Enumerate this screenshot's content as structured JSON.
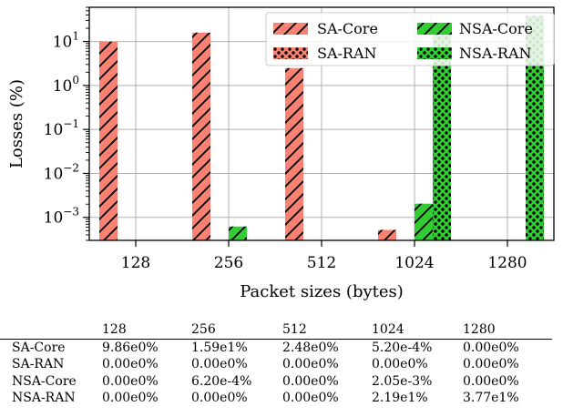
{
  "chart_data": {
    "type": "bar",
    "xlabel": "Packet sizes (bytes)",
    "ylabel": "Losses (%)",
    "yscale": "log",
    "ylim": [
      0.0003,
      60
    ],
    "yticks": [
      {
        "value": 0.001,
        "base": "10",
        "exp": "−3"
      },
      {
        "value": 0.01,
        "base": "10",
        "exp": "−2"
      },
      {
        "value": 0.1,
        "base": "10",
        "exp": "−1"
      },
      {
        "value": 1,
        "base": "10",
        "exp": "0"
      },
      {
        "value": 10,
        "base": "10",
        "exp": "1"
      }
    ],
    "grid": true,
    "legend_position": "top-right",
    "categories": [
      "128",
      "256",
      "512",
      "1024",
      "1280"
    ],
    "series": [
      {
        "name": "SA-Core",
        "color": "#fa8072",
        "hatch": "slash",
        "values": [
          9.86,
          15.9,
          2.48,
          0.00052,
          0
        ]
      },
      {
        "name": "SA-RAN",
        "color": "#fa8072",
        "hatch": "dots",
        "values": [
          0,
          0,
          0,
          0,
          0
        ]
      },
      {
        "name": "NSA-Core",
        "color": "#32cd32",
        "hatch": "slash",
        "values": [
          0,
          0.00062,
          0,
          0.00205,
          0
        ]
      },
      {
        "name": "NSA-RAN",
        "color": "#32cd32",
        "hatch": "dots",
        "values": [
          0,
          0,
          0,
          21.9,
          37.7
        ]
      }
    ]
  },
  "table": {
    "columns": [
      "",
      "128",
      "256",
      "512",
      "1024",
      "1280"
    ],
    "rows": [
      {
        "label": "SA-Core",
        "cells": [
          "9.86e0%",
          "1.59e1%",
          "2.48e0%",
          "5.20e-4%",
          "0.00e0%"
        ]
      },
      {
        "label": "SA-RAN",
        "cells": [
          "0.00e0%",
          "0.00e0%",
          "0.00e0%",
          "0.00e0%",
          "0.00e0%"
        ]
      },
      {
        "label": "NSA-Core",
        "cells": [
          "0.00e0%",
          "6.20e-4%",
          "0.00e0%",
          "2.05e-3%",
          "0.00e0%"
        ]
      },
      {
        "label": "NSA-RAN",
        "cells": [
          "0.00e0%",
          "0.00e0%",
          "0.00e0%",
          "2.19e1%",
          "3.77e1%"
        ]
      }
    ]
  }
}
